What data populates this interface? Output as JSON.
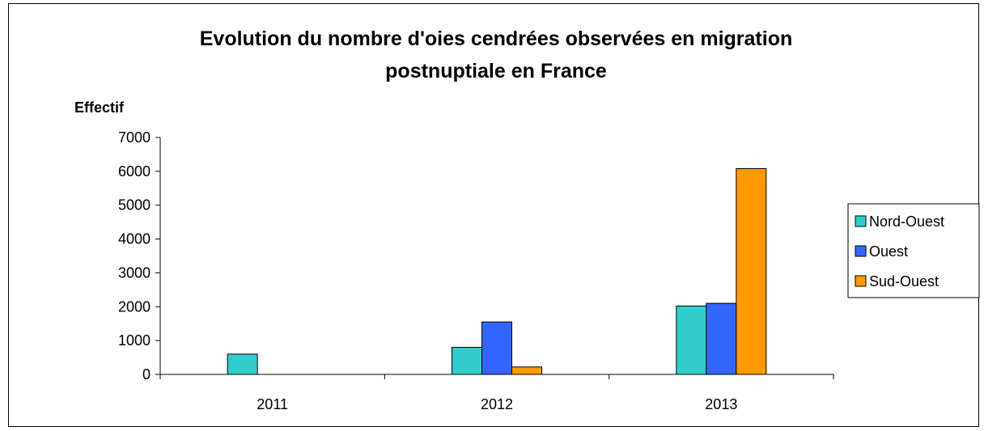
{
  "chart_data": {
    "type": "bar",
    "title_line1": "Evolution du nombre d'oies cendrées observées en migration",
    "title_line2": "postnuptiale en France",
    "xlabel": "",
    "ylabel": "Effectif",
    "categories": [
      "2011",
      "2012",
      "2013"
    ],
    "series": [
      {
        "name": "Nord-Ouest",
        "values": [
          600,
          800,
          2020
        ],
        "color": "#33CCCC"
      },
      {
        "name": "Ouest",
        "values": [
          0,
          1550,
          2100
        ],
        "color": "#3366FF"
      },
      {
        "name": "Sud-Ouest",
        "values": [
          0,
          220,
          6080
        ],
        "color": "#FF9900"
      }
    ],
    "ylim": [
      0,
      7000
    ],
    "yticks": [
      0,
      1000,
      2000,
      3000,
      4000,
      5000,
      6000,
      7000
    ],
    "grid": false,
    "legend": "right"
  }
}
